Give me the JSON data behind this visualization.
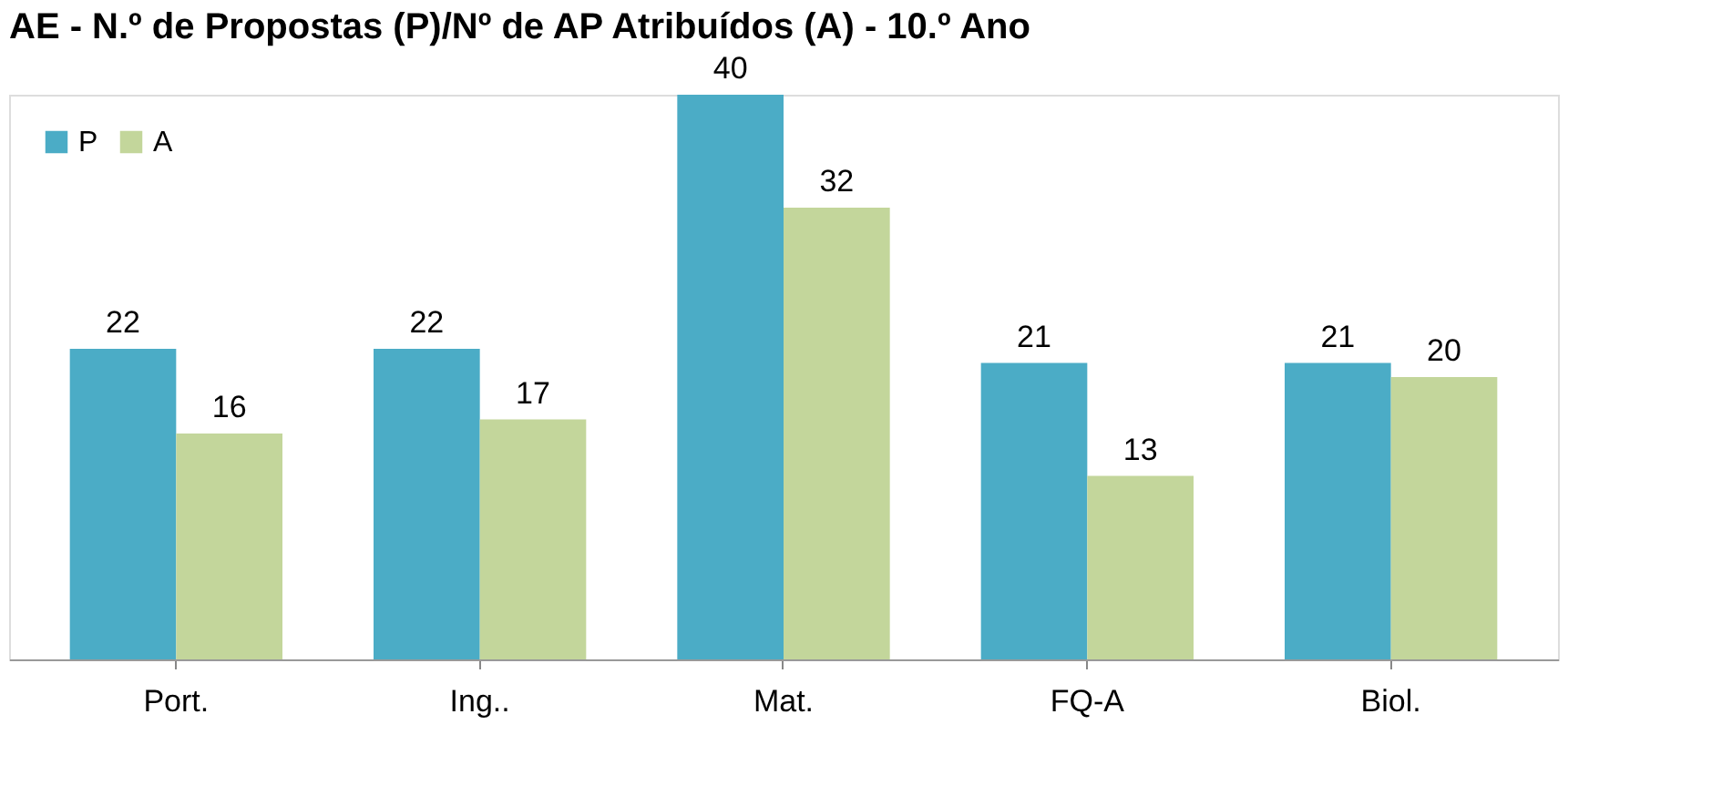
{
  "chart_data": {
    "type": "bar",
    "title": "AE - N.º de Propostas (P)/Nº de AP Atribuídos (A) - 10.º Ano",
    "categories": [
      "Port.",
      "Ing..",
      "Mat.",
      "FQ-A",
      "Biol."
    ],
    "series": [
      {
        "name": "P",
        "color": "#4bacc6",
        "values": [
          22,
          22,
          40,
          21,
          21
        ]
      },
      {
        "name": "A",
        "color": "#c3d69b",
        "values": [
          16,
          17,
          32,
          13,
          20
        ]
      }
    ],
    "data_labels": true,
    "legend": "top left",
    "grid": false,
    "tick_labels": "x"
  }
}
